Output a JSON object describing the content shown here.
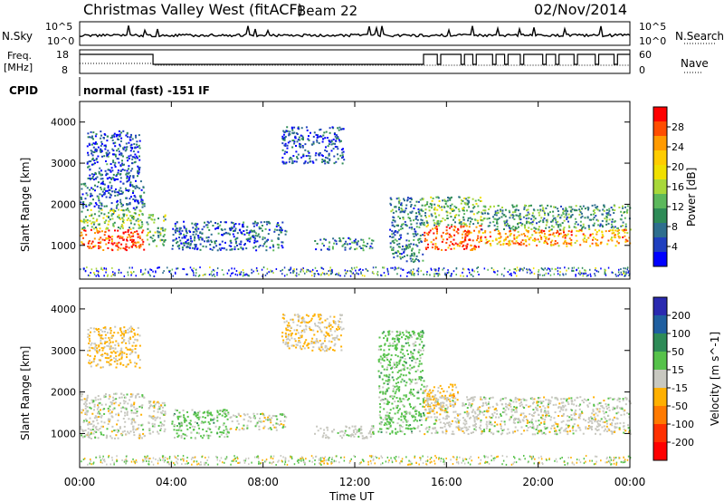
{
  "header": {
    "title": "Christmas Valley West (fitACF)",
    "beam": "Beam 22",
    "date": "02/Nov/2014"
  },
  "panels": {
    "nsky": {
      "label": "N.Sky",
      "left_ticks": [
        "10^5",
        "10^0"
      ],
      "right_ticks": [
        "10^5",
        "10^0"
      ],
      "right_label": "N.Search"
    },
    "freq": {
      "label_line1": "Freq.",
      "label_line2": "[MHz]",
      "left_ticks": [
        "18",
        "8"
      ],
      "right_ticks": [
        "60",
        "0"
      ],
      "right_label": "Nave"
    },
    "cpid": {
      "label": "CPID",
      "text": "normal (fast) -151 IF"
    }
  },
  "axes": {
    "ylabel": "Slant Range [km]",
    "xlabel": "Time UT",
    "yticks": [
      "1000",
      "2000",
      "3000",
      "4000"
    ],
    "xticks": [
      "00:00",
      "04:00",
      "08:00",
      "12:00",
      "16:00",
      "20:00",
      "00:00"
    ]
  },
  "colorbars": {
    "power": {
      "label": "Power [dB]",
      "ticks": [
        "28",
        "24",
        "20",
        "16",
        "12",
        "8",
        "4"
      ],
      "colors": [
        "#ff0000",
        "#ff4d00",
        "#ff9a00",
        "#ffcc00",
        "#f0e000",
        "#a8d83a",
        "#5cb85c",
        "#2e8b57",
        "#2e6e8e",
        "#1f3fbf",
        "#0000ff"
      ]
    },
    "velocity": {
      "label": "Velocity [m s^-1]",
      "ticks": [
        "200",
        "100",
        "50",
        "15",
        "-15",
        "-50",
        "-100",
        "-200"
      ],
      "colors": [
        "#2a2ab0",
        "#1f5fa0",
        "#2e8b57",
        "#56c24a",
        "#c8c8c0",
        "#ffb000",
        "#ff7a00",
        "#ff3000",
        "#ff0000"
      ]
    }
  },
  "chart_data": [
    {
      "type": "heatmap",
      "title": "Power [dB]",
      "xlabel": "Time UT",
      "ylabel": "Slant Range [km]",
      "xlim": [
        0,
        24
      ],
      "ylim": [
        180,
        4500
      ],
      "zlim": [
        0,
        30
      ],
      "regions": [
        {
          "t0": 0.0,
          "t1": 2.8,
          "r0": 900,
          "r1": 1400,
          "value": 27
        },
        {
          "t0": 0.0,
          "t1": 2.8,
          "r0": 1400,
          "r1": 1900,
          "value": 14
        },
        {
          "t0": 0.0,
          "t1": 2.8,
          "r0": 1900,
          "r1": 2600,
          "value": 6
        },
        {
          "t0": 0.3,
          "t1": 2.6,
          "r0": 2600,
          "r1": 3800,
          "value": 5
        },
        {
          "t0": 2.9,
          "t1": 3.7,
          "r0": 1000,
          "r1": 1800,
          "value": 12
        },
        {
          "t0": 4.0,
          "t1": 9.0,
          "r0": 900,
          "r1": 1600,
          "value": 6
        },
        {
          "t0": 8.8,
          "t1": 11.5,
          "r0": 3000,
          "r1": 3900,
          "value": 5
        },
        {
          "t0": 10.2,
          "t1": 12.8,
          "r0": 900,
          "r1": 1200,
          "value": 8
        },
        {
          "t0": 13.5,
          "t1": 15.0,
          "r0": 600,
          "r1": 2200,
          "value": 8
        },
        {
          "t0": 15.0,
          "t1": 17.5,
          "r0": 900,
          "r1": 1500,
          "value": 26
        },
        {
          "t0": 15.0,
          "t1": 17.5,
          "r0": 1500,
          "r1": 2200,
          "value": 12
        },
        {
          "t0": 17.5,
          "t1": 24.0,
          "r0": 1000,
          "r1": 1400,
          "value": 22
        },
        {
          "t0": 17.5,
          "t1": 24.0,
          "r0": 1400,
          "r1": 2000,
          "value": 10
        }
      ]
    },
    {
      "type": "heatmap",
      "title": "Velocity [m s^-1]",
      "xlabel": "Time UT",
      "ylabel": "Slant Range [km]",
      "xlim": [
        0,
        24
      ],
      "ylim": [
        180,
        4500
      ],
      "zlim": [
        -200,
        200
      ],
      "regions": [
        {
          "t0": 0.0,
          "t1": 2.8,
          "r0": 900,
          "r1": 2000,
          "value": 0
        },
        {
          "t0": 0.3,
          "t1": 2.6,
          "r0": 2600,
          "r1": 3600,
          "value": -30
        },
        {
          "t0": 2.9,
          "t1": 3.7,
          "r0": 1000,
          "r1": 1800,
          "value": 0
        },
        {
          "t0": 4.0,
          "t1": 6.5,
          "r0": 900,
          "r1": 1600,
          "value": 40
        },
        {
          "t0": 6.5,
          "t1": 9.0,
          "r0": 1100,
          "r1": 1500,
          "value": 0
        },
        {
          "t0": 8.8,
          "t1": 11.5,
          "r0": 3000,
          "r1": 3900,
          "value": -20
        },
        {
          "t0": 10.2,
          "t1": 12.8,
          "r0": 900,
          "r1": 1200,
          "value": 5
        },
        {
          "t0": 13.0,
          "t1": 15.0,
          "r0": 1000,
          "r1": 3500,
          "value": 40
        },
        {
          "t0": 15.0,
          "t1": 16.5,
          "r0": 1500,
          "r1": 2200,
          "value": -40
        },
        {
          "t0": 15.0,
          "t1": 24.0,
          "r0": 1000,
          "r1": 1900,
          "value": 0
        }
      ]
    }
  ]
}
